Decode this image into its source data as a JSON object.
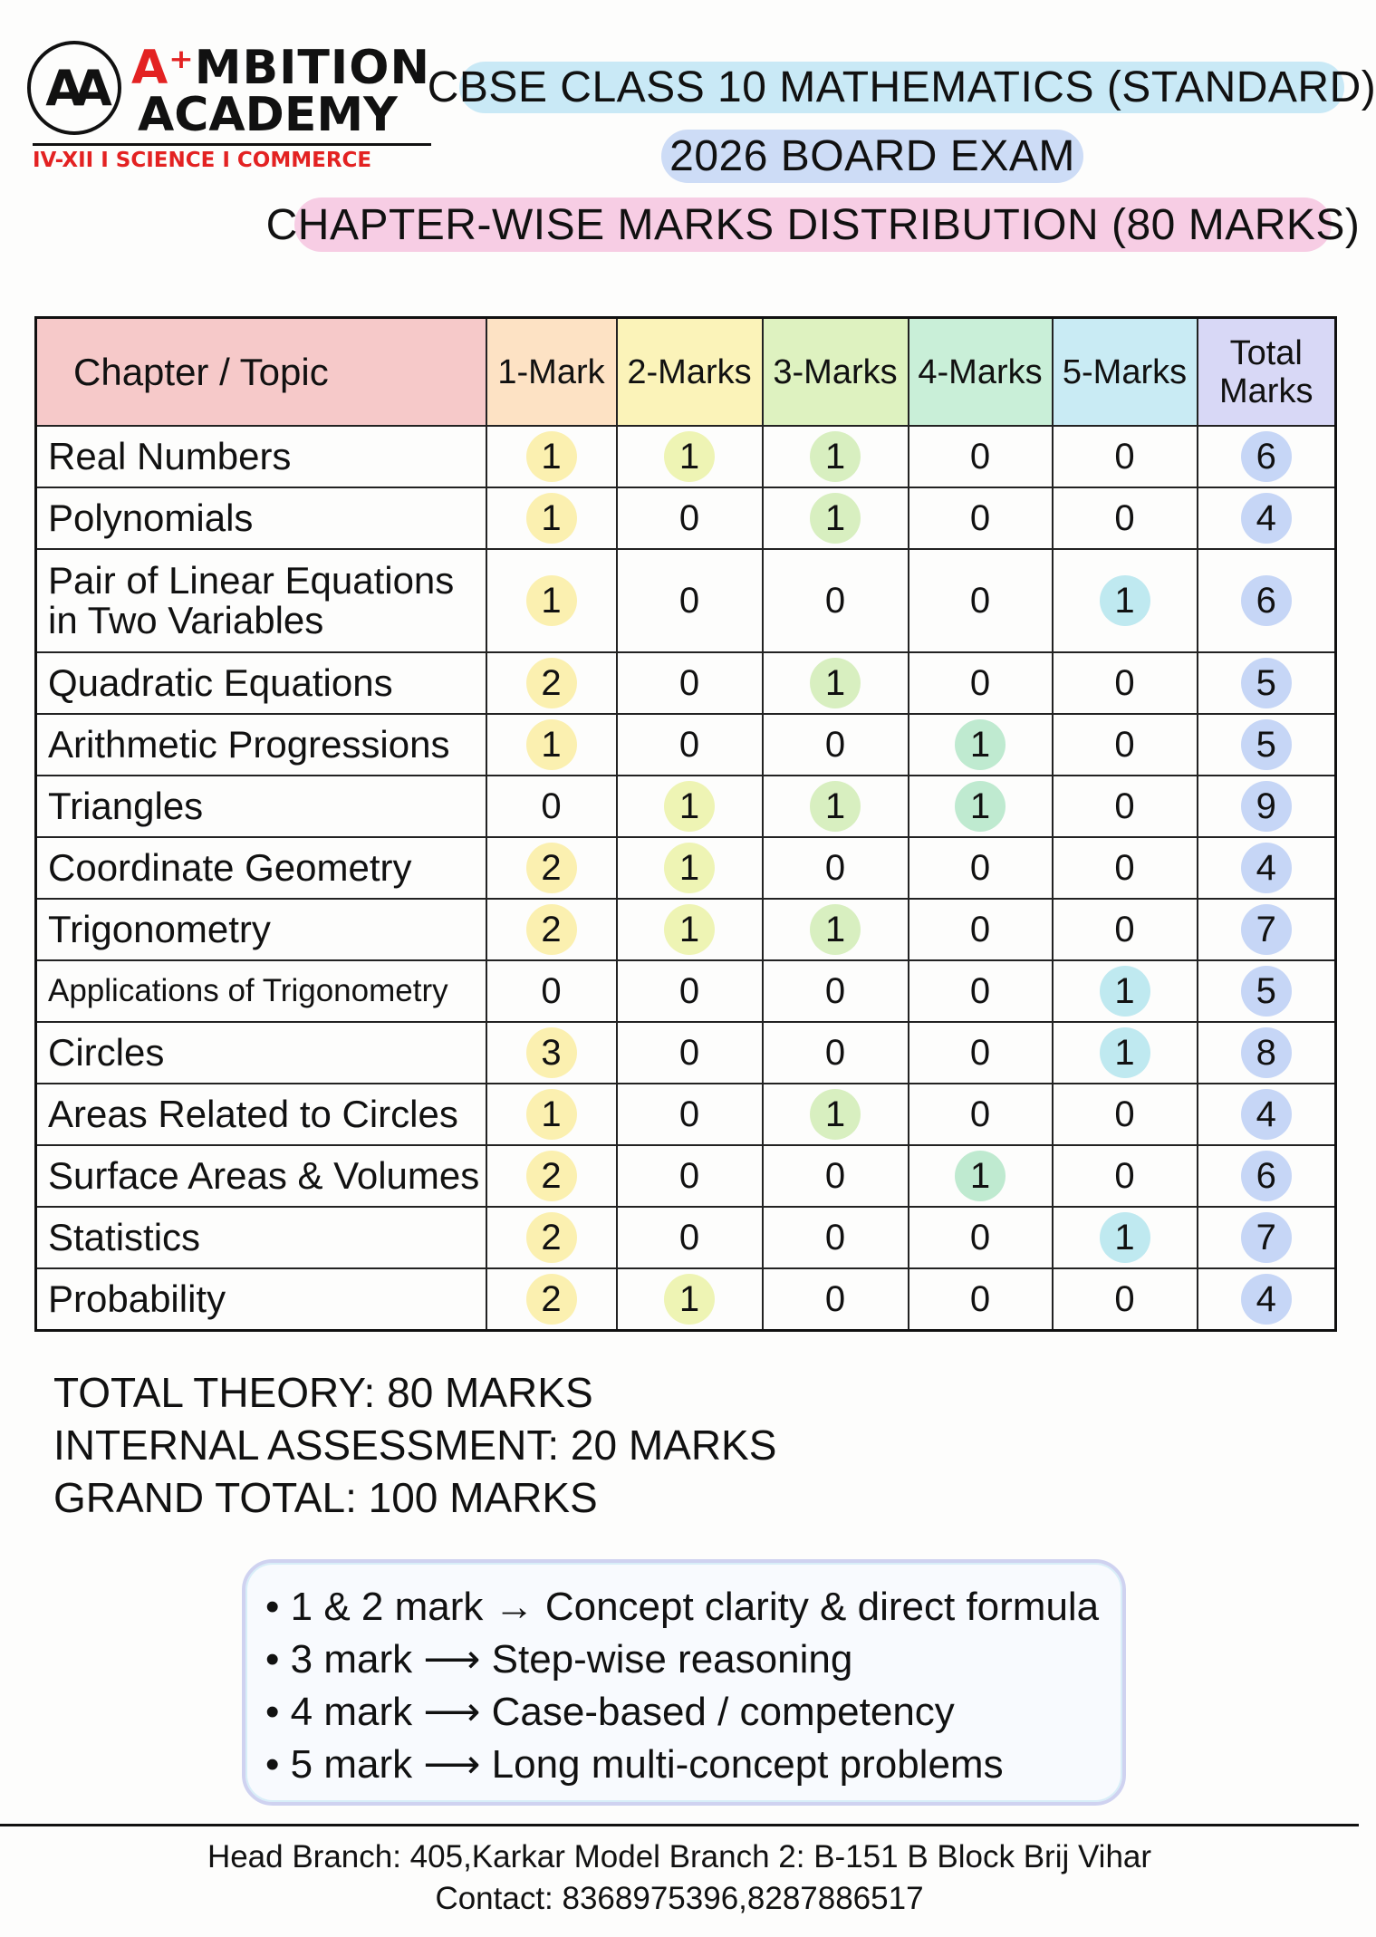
{
  "logo": {
    "monogram": "AA",
    "name_line1": "AMBITION",
    "name_line2": "ACADEMY",
    "tagline": "IV-XII I SCIENCE I COMMERCE",
    "brand_red": "#e32222"
  },
  "titles": {
    "line1": "CBSE CLASS 10 MATHEMATICS (STANDARD)",
    "line2": "2026 BOARD EXAM",
    "line3": "CHAPTER-WISE MARKS DISTRIBUTION (80 MARKS)"
  },
  "table": {
    "headers": [
      "Chapter / Topic",
      "1-Mark",
      "2-Marks",
      "3-Marks",
      "4-Marks",
      "5-Marks",
      "Total Marks"
    ],
    "header_colors": [
      "#f6c9c9",
      "#fde2c4",
      "#fbf3b9",
      "#def2c0",
      "#c9efd8",
      "#c9ebf4",
      "#d8d8f6"
    ],
    "dot_colors": [
      "#fbf0b0",
      "#eef4b4",
      "#d8efc0",
      "#bfead0",
      "#bfe9f0",
      "#c6d6f6"
    ],
    "rows": [
      {
        "chapter": "Real Numbers",
        "values": [
          1,
          1,
          1,
          0,
          0,
          6
        ]
      },
      {
        "chapter": "Polynomials",
        "values": [
          1,
          0,
          1,
          0,
          0,
          4
        ]
      },
      {
        "chapter": "Pair of Linear Equations in Two Variables",
        "values": [
          1,
          0,
          0,
          0,
          1,
          6
        ]
      },
      {
        "chapter": "Quadratic Equations",
        "values": [
          2,
          0,
          1,
          0,
          0,
          5
        ]
      },
      {
        "chapter": "Arithmetic Progressions",
        "values": [
          1,
          0,
          0,
          1,
          0,
          5
        ]
      },
      {
        "chapter": "Triangles",
        "values": [
          0,
          1,
          1,
          1,
          0,
          9
        ]
      },
      {
        "chapter": "Coordinate Geometry",
        "values": [
          2,
          1,
          0,
          0,
          0,
          4
        ]
      },
      {
        "chapter": "Trigonometry",
        "values": [
          2,
          1,
          1,
          0,
          0,
          7
        ]
      },
      {
        "chapter": "Applications of Trigonometry",
        "values": [
          0,
          0,
          0,
          0,
          1,
          5
        ]
      },
      {
        "chapter": "Circles",
        "values": [
          3,
          0,
          0,
          0,
          1,
          8
        ]
      },
      {
        "chapter": "Areas Related to Circles",
        "values": [
          1,
          0,
          1,
          0,
          0,
          4
        ]
      },
      {
        "chapter": "Surface Areas & Volumes",
        "values": [
          2,
          0,
          0,
          1,
          0,
          6
        ]
      },
      {
        "chapter": "Statistics",
        "values": [
          2,
          0,
          0,
          0,
          1,
          7
        ]
      },
      {
        "chapter": "Probability",
        "values": [
          2,
          1,
          0,
          0,
          0,
          4
        ]
      }
    ]
  },
  "summary": {
    "theory": "TOTAL THEORY: 80 MARKS",
    "internal": "INTERNAL ASSESSMENT: 20 MARKS",
    "grand": "GRAND TOTAL: 100 MARKS"
  },
  "notes": [
    "• 1 & 2 mark → Concept clarity & direct formula",
    "• 3 mark ⟶ Step-wise reasoning",
    "• 4 mark ⟶ Case-based / competency",
    "• 5 mark ⟶ Long multi-concept problems"
  ],
  "footer": {
    "address": "Head Branch: 405,Karkar Model Branch 2: B-151 B Block Brij Vihar",
    "contact": "Contact: 8368975396,8287886517"
  }
}
